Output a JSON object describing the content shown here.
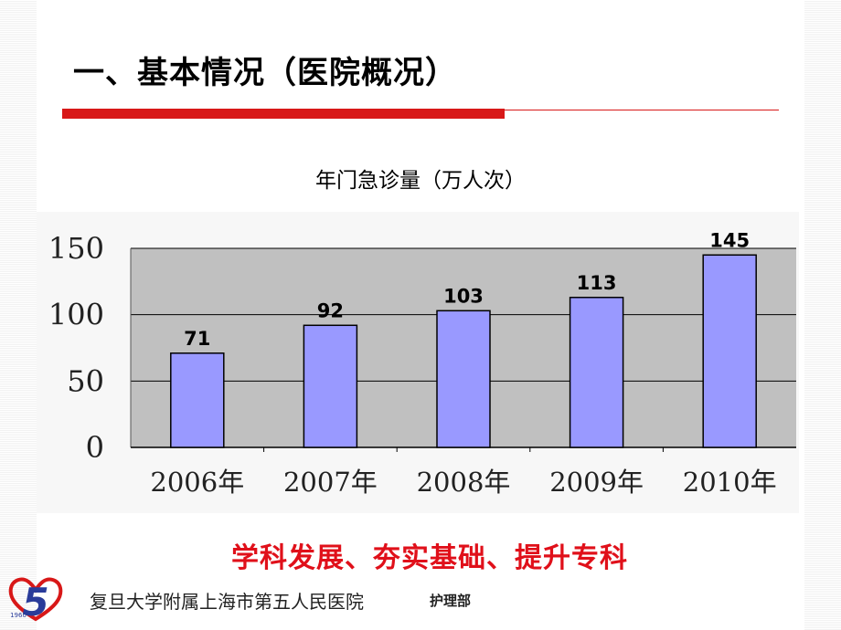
{
  "slide": {
    "title": "一、基本情况（医院概况）",
    "slogan": "学科发展、夯实基础、提升专科",
    "footer": {
      "hospital": "复旦大学附属上海市第五人民医院",
      "department": "护理部"
    },
    "logo": {
      "numeral": "5",
      "year": "1960"
    }
  },
  "colors": {
    "accent_red": "#d81818",
    "bar_fill": "#9999ff",
    "plot_bg": "#c0c0c0"
  },
  "chart_data": {
    "type": "bar",
    "title": "年门急诊量（万人次）",
    "categories": [
      "2006年",
      "2007年",
      "2008年",
      "2009年",
      "2010年"
    ],
    "values": [
      71,
      92,
      103,
      113,
      145
    ],
    "data_labels": [
      "71",
      "92",
      "103",
      "113",
      "145"
    ],
    "ylim": [
      0,
      150
    ],
    "yticks": [
      "0",
      "50",
      "100",
      "150"
    ],
    "grid": true,
    "legend": "none"
  }
}
